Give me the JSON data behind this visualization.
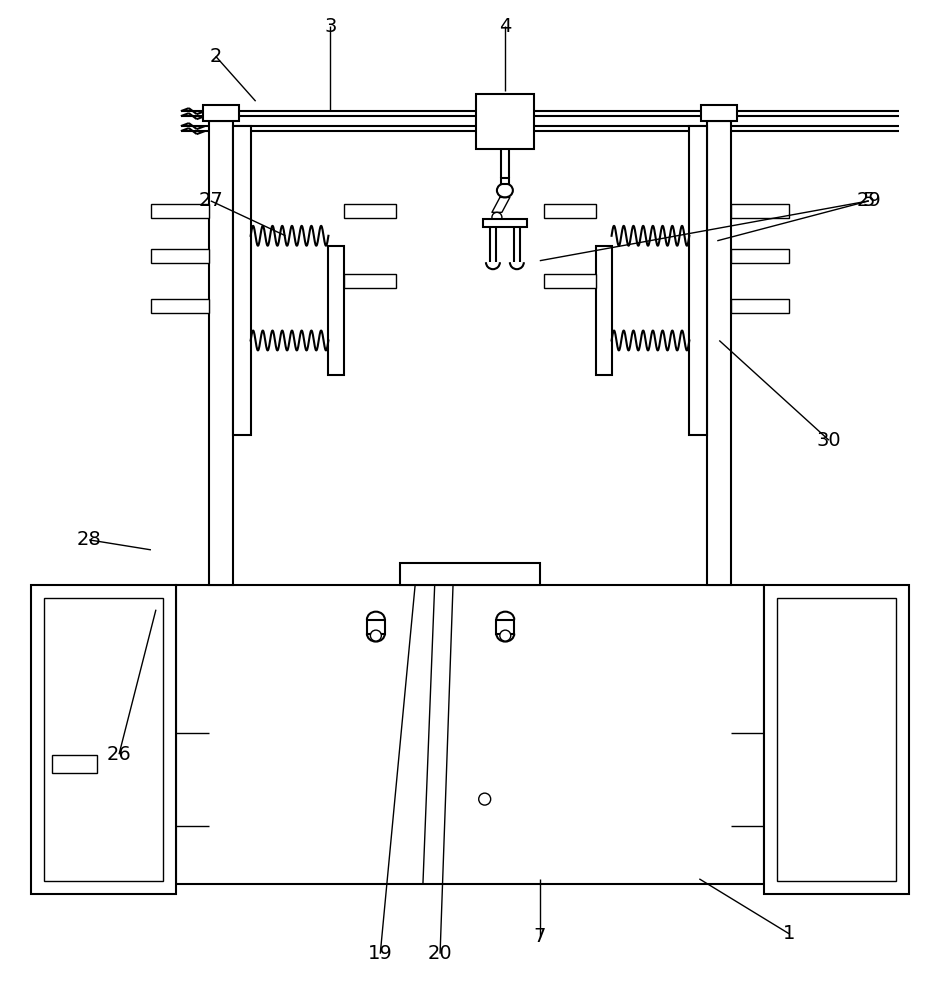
{
  "bg_color": "#ffffff",
  "line_color": "#000000",
  "lw": 1.5,
  "lw2": 1.0,
  "fig_width": 9.36,
  "fig_height": 10.0
}
